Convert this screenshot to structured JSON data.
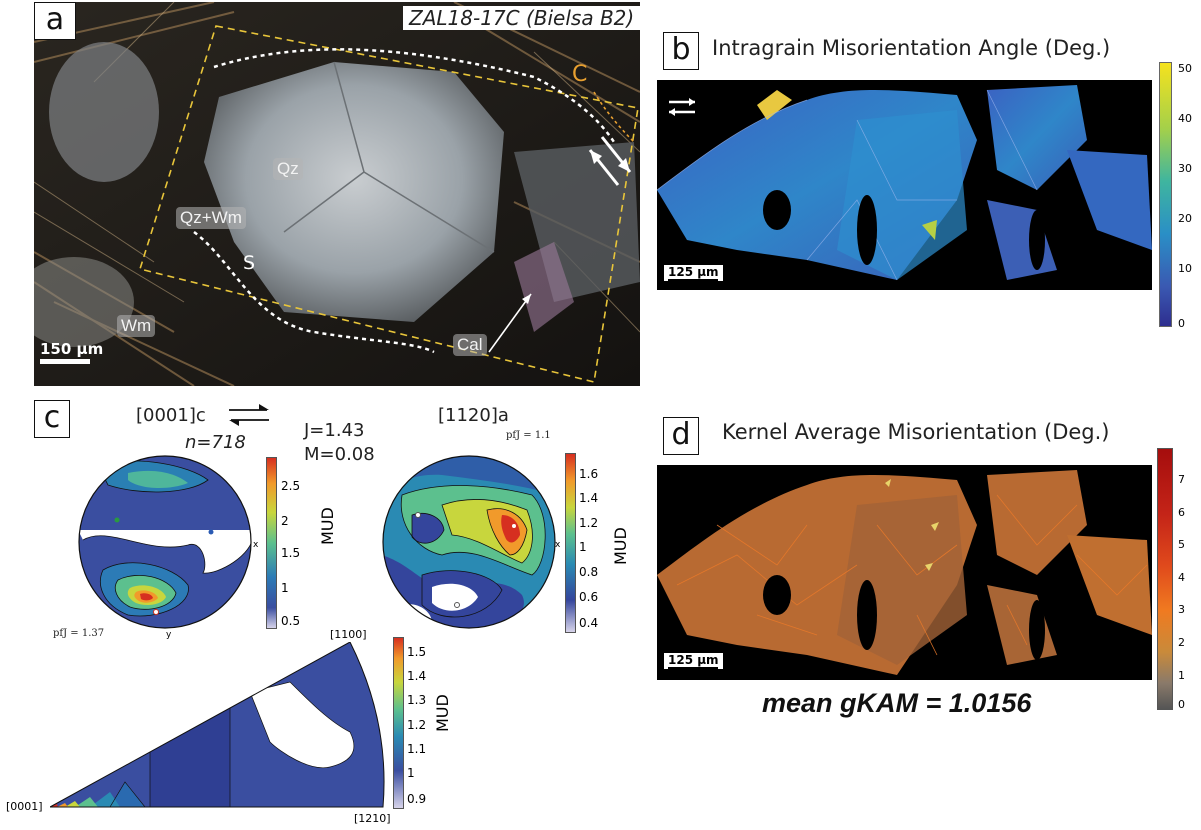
{
  "panel_a": {
    "letter": "a",
    "sample": "ZAL18-17C (Bielsa B2)",
    "labels": {
      "qz": "Qz",
      "qzwm": "Qz+Wm",
      "wm": "Wm",
      "cal": "Cal",
      "s": "S",
      "c": "C"
    },
    "scalebar": "150 µm"
  },
  "panel_b": {
    "letter": "b",
    "title": "Intragrain Misorientation Angle (Deg.)",
    "scalebar": "125 µm",
    "colorbar_ticks": [
      "50",
      "40",
      "30",
      "20",
      "10",
      "0"
    ]
  },
  "panel_c": {
    "letter": "c",
    "pf1_title": "[0001]c",
    "n": "n=718",
    "J": "J=1.43",
    "M": "M=0.08",
    "pf1_pfj": "pfJ = 1.37",
    "pf2_title": "[1120]a",
    "pf2_pfj": "pfJ = 1.1",
    "mud_label": "MUD",
    "cb1_ticks": [
      "2.5",
      "2",
      "1.5",
      "1",
      "0.5"
    ],
    "cb2_ticks": [
      "1.6",
      "1.4",
      "1.2",
      "1",
      "0.8",
      "0.6",
      "0.4"
    ],
    "cb3_ticks": [
      "1.5",
      "1.4",
      "1.3",
      "1.2",
      "1.1",
      "1",
      "0.9"
    ],
    "ipf_corners": {
      "top": "[1100]",
      "left": "[0001]",
      "bottom": "[1210]"
    },
    "x_marker": "x",
    "y_marker": "y"
  },
  "panel_d": {
    "letter": "d",
    "title": "Kernel Average Misorientation (Deg.)",
    "scalebar": "125 µm",
    "mean": "mean gKAM = 1.0156",
    "colorbar_ticks": [
      "7",
      "6",
      "5",
      "4",
      "3",
      "2",
      "1",
      "0"
    ]
  },
  "colors": {
    "viridis_top": "#f5e21e",
    "viridis_bottom": "#2e2e8f",
    "kam_top": "#a50d0d",
    "kam_bottom": "#555555",
    "dashed_box": "#e8c53a"
  }
}
